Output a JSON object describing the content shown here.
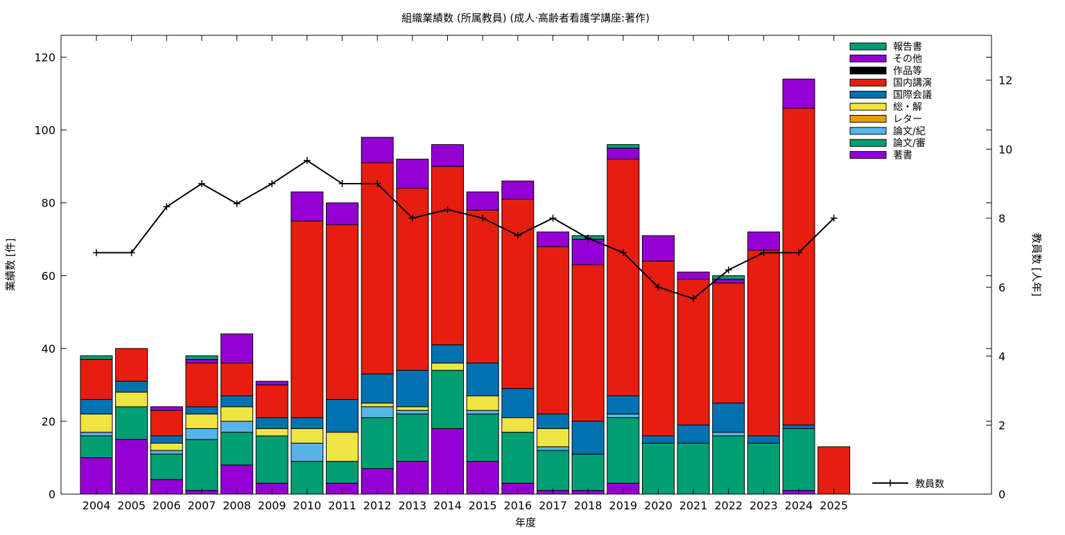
{
  "chart_data": {
    "type": "bar",
    "stacked": true,
    "title": "組織業績数 (所属教員) (成人·高齢者看護学講座:著作)",
    "xlabel": "年度",
    "ylabel": "業績数 [件]",
    "y2label": "教員数 [人年]",
    "ylim": [
      0,
      126
    ],
    "y2lim": [
      0,
      13.3
    ],
    "yticks": [
      0,
      20,
      40,
      60,
      80,
      100,
      120
    ],
    "y2ticks": [
      0,
      2,
      4,
      6,
      8,
      10,
      12
    ],
    "legend_position": "top-right",
    "categories": [
      "2004",
      "2005",
      "2006",
      "2007",
      "2008",
      "2009",
      "2010",
      "2011",
      "2012",
      "2013",
      "2014",
      "2015",
      "2016",
      "2017",
      "2018",
      "2019",
      "2020",
      "2021",
      "2022",
      "2023",
      "2024",
      "2025"
    ],
    "series": [
      {
        "name": "著書",
        "color": "#9400d3",
        "values": [
          10,
          15,
          4,
          1,
          8,
          3,
          0,
          3,
          7,
          9,
          18,
          9,
          3,
          1,
          1,
          3,
          0,
          0,
          0,
          0,
          1,
          0
        ]
      },
      {
        "name": "論文/審",
        "color": "#009e73",
        "values": [
          6,
          9,
          7,
          14,
          9,
          13,
          9,
          6,
          14,
          13,
          16,
          13,
          14,
          11,
          10,
          18,
          14,
          14,
          16,
          14,
          17,
          0
        ]
      },
      {
        "name": "論文/紀",
        "color": "#56b4e9",
        "values": [
          1,
          0,
          1,
          3,
          3,
          0,
          5,
          0,
          3,
          1,
          0,
          1,
          0,
          1,
          0,
          1,
          0,
          0,
          1,
          0,
          0,
          0
        ]
      },
      {
        "name": "レター",
        "color": "#e69f00",
        "values": [
          0,
          0,
          0,
          0,
          0,
          0,
          0,
          0,
          0,
          0,
          0,
          0,
          0,
          0,
          0,
          0,
          0,
          0,
          0,
          0,
          0,
          0
        ]
      },
      {
        "name": "総・解",
        "color": "#f0e442",
        "values": [
          5,
          4,
          2,
          4,
          4,
          2,
          4,
          8,
          1,
          1,
          2,
          4,
          4,
          5,
          0,
          0,
          0,
          0,
          0,
          0,
          0,
          0
        ]
      },
      {
        "name": "国際会議",
        "color": "#0072b2",
        "values": [
          4,
          3,
          2,
          2,
          3,
          3,
          3,
          9,
          8,
          10,
          5,
          9,
          8,
          4,
          9,
          5,
          2,
          5,
          8,
          2,
          1,
          0
        ]
      },
      {
        "name": "国内講演",
        "color": "#e51e10",
        "values": [
          11,
          9,
          7,
          12,
          9,
          9,
          54,
          48,
          58,
          50,
          49,
          42,
          52,
          46,
          43,
          65,
          48,
          40,
          33,
          51,
          87,
          13
        ]
      },
      {
        "name": "作品等",
        "color": "#000000",
        "values": [
          0,
          0,
          0,
          0,
          0,
          0,
          0,
          0,
          0,
          0,
          0,
          0,
          0,
          0,
          0,
          0,
          0,
          0,
          0,
          0,
          0,
          0
        ]
      },
      {
        "name": "その他",
        "color": "#9400d3",
        "values": [
          0,
          0,
          1,
          1,
          8,
          1,
          8,
          6,
          7,
          8,
          6,
          5,
          5,
          4,
          7,
          3,
          7,
          2,
          1,
          5,
          8,
          0
        ]
      },
      {
        "name": "報告書",
        "color": "#009e73",
        "values": [
          1,
          0,
          0,
          1,
          0,
          0,
          0,
          0,
          0,
          0,
          0,
          0,
          0,
          0,
          1,
          1,
          0,
          0,
          1,
          0,
          0,
          0
        ]
      }
    ],
    "line_series": {
      "name": "教員数",
      "color": "#000000",
      "axis": "right",
      "values": [
        7,
        7,
        8.33,
        9,
        8.42,
        9,
        9.67,
        9,
        9,
        8,
        8.25,
        8,
        7.5,
        8,
        7.42,
        7,
        6,
        5.67,
        6.5,
        7,
        7,
        8
      ]
    }
  }
}
